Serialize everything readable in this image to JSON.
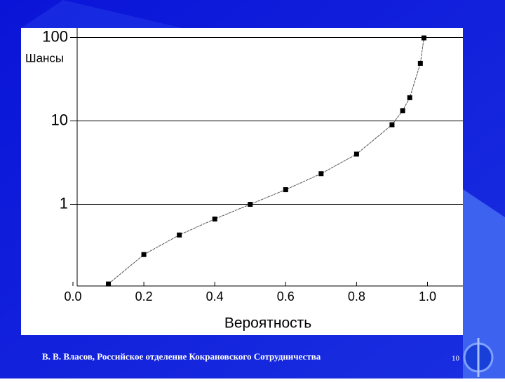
{
  "chart_data": {
    "type": "line",
    "x_label": "Вероятность",
    "y_label": "Шансы",
    "x": [
      0.1,
      0.2,
      0.3,
      0.4,
      0.5,
      0.6,
      0.7,
      0.8,
      0.9,
      0.93,
      0.95,
      0.98,
      0.99
    ],
    "series": [
      {
        "color": "#000000",
        "values": [
          0.111,
          0.25,
          0.429,
          0.667,
          1,
          1.5,
          2.333,
          4,
          9,
          13.29,
          19,
          49,
          99
        ]
      }
    ],
    "xlim": [
      0,
      1.1
    ],
    "ylim": [
      0.105,
      130
    ],
    "xticks": [
      {
        "value": 0,
        "label": "0.0"
      },
      0.2,
      0.4,
      0.6,
      0.8,
      {
        "value": 1,
        "label": "1.0"
      }
    ],
    "yticks": [
      1,
      10,
      100
    ],
    "y_scale": "log",
    "grid": true
  },
  "footer": "В. В. Власов, Российское отделение Кокрановского Сотрудничества",
  "page_number": "10"
}
